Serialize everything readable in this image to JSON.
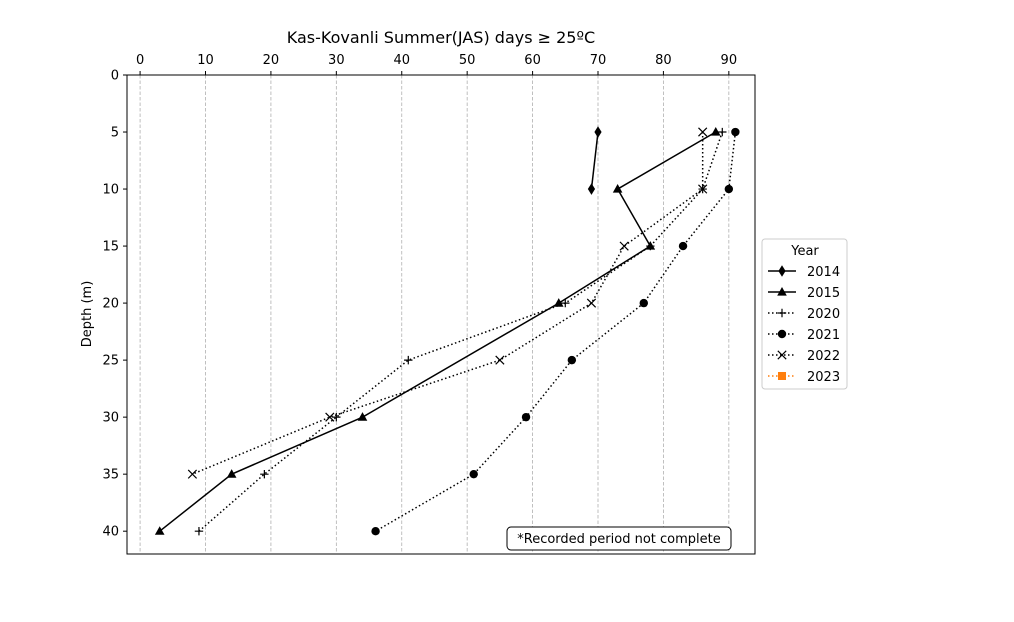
{
  "chart_data": {
    "type": "line",
    "title": "Kas-Kovanli Summer(JAS) days ≥ 25ºC",
    "xlabel": "",
    "ylabel": "Depth (m)",
    "xlim": [
      -2,
      94
    ],
    "ylim": [
      0,
      42
    ],
    "y_inverted": true,
    "x_axis_position": "top",
    "x_ticks": [
      0,
      10,
      20,
      30,
      40,
      50,
      60,
      70,
      80,
      90
    ],
    "y_ticks": [
      0,
      5,
      10,
      15,
      20,
      25,
      30,
      35,
      40
    ],
    "grid": "vertical dashed",
    "legend_title": "Year",
    "legend_position": "outside right",
    "annotation": "*Recorded period not complete",
    "series": [
      {
        "name": "2014",
        "marker": "diamond",
        "line": "solid",
        "color": "#000000",
        "x": [
          70,
          69
        ],
        "y": [
          5,
          10
        ]
      },
      {
        "name": "2015",
        "marker": "triangle",
        "line": "solid",
        "color": "#000000",
        "x": [
          88,
          73,
          78,
          64,
          34,
          14,
          3
        ],
        "y": [
          5,
          10,
          15,
          20,
          30,
          35,
          40
        ]
      },
      {
        "name": "2020",
        "marker": "plus",
        "line": "dotted",
        "color": "#000000",
        "x": [
          89,
          86,
          78,
          65,
          41,
          30,
          19,
          9
        ],
        "y": [
          5,
          10,
          15,
          20,
          25,
          30,
          35,
          40
        ]
      },
      {
        "name": "2021",
        "marker": "circle",
        "line": "dotted",
        "color": "#000000",
        "x": [
          91,
          90,
          83,
          77,
          66,
          59,
          51,
          36
        ],
        "y": [
          5,
          10,
          15,
          20,
          25,
          30,
          35,
          40
        ]
      },
      {
        "name": "2022",
        "marker": "x",
        "line": "dotted",
        "color": "#000000",
        "x": [
          86,
          86,
          74,
          69,
          55,
          29,
          8
        ],
        "y": [
          5,
          10,
          15,
          20,
          25,
          30,
          35
        ]
      },
      {
        "name": "2023",
        "marker": "square",
        "line": "dotted",
        "color": "#ff7f0e",
        "x": [],
        "y": []
      }
    ]
  }
}
